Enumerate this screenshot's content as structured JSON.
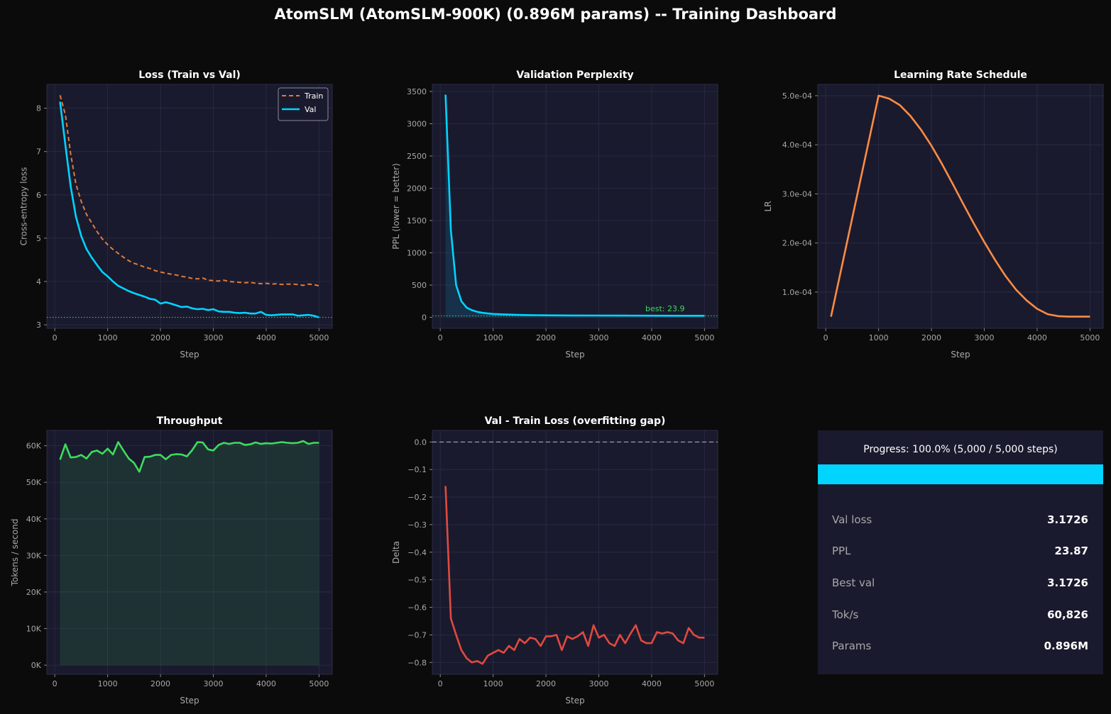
{
  "dashboard": {
    "title": "AtomSLM (AtomSLM-900K)  (0.896M params) -- Training Dashboard",
    "colors": {
      "background": "#0b0b0b",
      "panel": "#1a1a2e",
      "train": "#e07b39",
      "val": "#00d4ff",
      "lr": "#ff8c42",
      "throughput": "#3ddc5c",
      "gap": "#e04a3f",
      "best_line": "#3ddc5c"
    }
  },
  "progress": {
    "text": "Progress: 100.0%  (5,000 / 5,000 steps)",
    "fraction": 1.0,
    "stats": [
      {
        "label": "Val loss",
        "value": "3.1726"
      },
      {
        "label": "PPL",
        "value": "23.87"
      },
      {
        "label": "Best val",
        "value": "3.1726"
      },
      {
        "label": "Tok/s",
        "value": "60,826"
      },
      {
        "label": "Params",
        "value": "0.896M"
      }
    ]
  },
  "chart_data": [
    {
      "id": "loss",
      "type": "line",
      "title": "Loss (Train vs Val)",
      "xlabel": "Step",
      "ylabel": "Cross-entropy loss",
      "xlim": [
        -150,
        5250
      ],
      "ylim": [
        2.92,
        8.55
      ],
      "xticks": [
        0,
        1000,
        2000,
        3000,
        4000,
        5000
      ],
      "xtick_labels": [
        "0",
        "1000",
        "2000",
        "3000",
        "4000",
        "5000"
      ],
      "yticks": [
        3,
        4,
        5,
        6,
        7,
        8
      ],
      "ytick_labels": [
        "3",
        "4",
        "5",
        "6",
        "7",
        "8"
      ],
      "grid": true,
      "legend": "top-right",
      "hline": {
        "y": 3.1726,
        "color": "#3ddc5c",
        "style": "dotted"
      },
      "series": [
        {
          "name": "Train",
          "color": "#e07b39",
          "style": "dashed",
          "x": [
            100,
            200,
            300,
            400,
            500,
            600,
            700,
            800,
            900,
            1000,
            1100,
            1200,
            1300,
            1400,
            1500,
            1600,
            1700,
            1800,
            1900,
            2000,
            2100,
            2200,
            2300,
            2400,
            2500,
            2600,
            2700,
            2800,
            2900,
            3000,
            3100,
            3200,
            3300,
            3400,
            3500,
            3600,
            3700,
            3800,
            3900,
            4000,
            4100,
            4200,
            4300,
            4400,
            4500,
            4600,
            4700,
            4800,
            4900,
            5000
          ],
          "y": [
            8.3,
            7.85,
            6.95,
            6.25,
            5.85,
            5.55,
            5.35,
            5.15,
            4.98,
            4.85,
            4.74,
            4.65,
            4.56,
            4.48,
            4.42,
            4.38,
            4.33,
            4.3,
            4.25,
            4.22,
            4.19,
            4.17,
            4.15,
            4.12,
            4.1,
            4.07,
            4.06,
            4.08,
            4.03,
            4.02,
            4.01,
            4.03,
            4.0,
            3.99,
            3.98,
            3.97,
            3.98,
            3.96,
            3.95,
            3.96,
            3.94,
            3.95,
            3.93,
            3.94,
            3.94,
            3.93,
            3.91,
            3.94,
            3.93,
            3.9
          ]
        },
        {
          "name": "Val",
          "color": "#00d4ff",
          "style": "solid",
          "x": [
            100,
            200,
            300,
            400,
            500,
            600,
            700,
            800,
            900,
            1000,
            1100,
            1200,
            1300,
            1400,
            1500,
            1600,
            1700,
            1800,
            1900,
            2000,
            2100,
            2200,
            2300,
            2400,
            2500,
            2600,
            2700,
            2800,
            2900,
            3000,
            3100,
            3200,
            3300,
            3400,
            3500,
            3600,
            3700,
            3800,
            3900,
            4000,
            4100,
            4200,
            4300,
            4400,
            4500,
            4600,
            4700,
            4800,
            4900,
            5000
          ],
          "y": [
            8.15,
            7.15,
            6.2,
            5.5,
            5.05,
            4.75,
            4.55,
            4.38,
            4.22,
            4.12,
            4.0,
            3.9,
            3.84,
            3.78,
            3.73,
            3.69,
            3.65,
            3.6,
            3.58,
            3.49,
            3.52,
            3.49,
            3.45,
            3.41,
            3.42,
            3.38,
            3.36,
            3.37,
            3.34,
            3.36,
            3.31,
            3.3,
            3.3,
            3.28,
            3.27,
            3.28,
            3.26,
            3.26,
            3.3,
            3.23,
            3.22,
            3.23,
            3.24,
            3.24,
            3.24,
            3.21,
            3.22,
            3.23,
            3.21,
            3.17
          ]
        }
      ]
    },
    {
      "id": "ppl",
      "type": "area",
      "title": "Validation Perplexity",
      "xlabel": "Step",
      "ylabel": "PPL (lower = better)",
      "xlim": [
        -150,
        5250
      ],
      "ylim": [
        -170,
        3610
      ],
      "xticks": [
        0,
        1000,
        2000,
        3000,
        4000,
        5000
      ],
      "xtick_labels": [
        "0",
        "1000",
        "2000",
        "3000",
        "4000",
        "5000"
      ],
      "yticks": [
        0,
        500,
        1000,
        1500,
        2000,
        2500,
        3000,
        3500
      ],
      "ytick_labels": [
        "0",
        "500",
        "1000",
        "1500",
        "2000",
        "2500",
        "3000",
        "3500"
      ],
      "grid": true,
      "hline": {
        "y": 23.9,
        "color": "#3ddc5c",
        "style": "dotted"
      },
      "annotation": {
        "text": "best: 23.9",
        "x": 3880,
        "y": 140,
        "color": "#3ddc5c"
      },
      "series": [
        {
          "name": "",
          "color": "#00d4ff",
          "style": "solid",
          "fill": true,
          "x": [
            100,
            200,
            300,
            400,
            500,
            600,
            700,
            800,
            900,
            1000,
            1200,
            1400,
            1600,
            1800,
            2000,
            2500,
            3000,
            3500,
            4000,
            4500,
            5000
          ],
          "y": [
            3450,
            1350,
            500,
            250,
            150,
            110,
            85,
            70,
            60,
            52,
            45,
            40,
            36,
            33,
            31,
            29,
            28,
            27,
            26,
            25,
            24
          ]
        }
      ]
    },
    {
      "id": "lr",
      "type": "line",
      "title": "Learning Rate Schedule",
      "xlabel": "Step",
      "ylabel": "LR",
      "xlim": [
        -150,
        5250
      ],
      "ylim": [
        2.63e-05,
        0.000523
      ],
      "xticks": [
        0,
        1000,
        2000,
        3000,
        4000,
        5000
      ],
      "xtick_labels": [
        "0",
        "1000",
        "2000",
        "3000",
        "4000",
        "5000"
      ],
      "yticks": [
        0.0001,
        0.0002,
        0.0003,
        0.0004,
        0.0005
      ],
      "ytick_labels": [
        "1.0e-04",
        "2.0e-04",
        "3.0e-04",
        "4.0e-04",
        "5.0e-04"
      ],
      "grid": true,
      "series": [
        {
          "name": "",
          "color": "#ff8c42",
          "style": "solid",
          "x": [
            100,
            1000,
            1200,
            1400,
            1600,
            1800,
            2000,
            2200,
            2400,
            2600,
            2800,
            3000,
            3200,
            3400,
            3600,
            3800,
            4000,
            4200,
            4400,
            4600,
            4800,
            5000
          ],
          "y": [
            5e-05,
            0.0005,
            0.000494,
            0.000481,
            0.000459,
            0.000431,
            0.000398,
            0.000361,
            0.000321,
            0.00028,
            0.00024,
            0.000202,
            0.000166,
            0.000133,
            0.000105,
            8.3e-05,
            6.6e-05,
            5.5e-05,
            5.1e-05,
            5e-05,
            5e-05,
            5e-05
          ]
        }
      ]
    },
    {
      "id": "throughput",
      "type": "area",
      "title": "Throughput",
      "xlabel": "Step",
      "ylabel": "Tokens / second",
      "xlim": [
        -150,
        5250
      ],
      "ylim": [
        -2500,
        64200
      ],
      "xticks": [
        0,
        1000,
        2000,
        3000,
        4000,
        5000
      ],
      "xtick_labels": [
        "0",
        "1000",
        "2000",
        "3000",
        "4000",
        "5000"
      ],
      "yticks": [
        0,
        10000,
        20000,
        30000,
        40000,
        50000,
        60000
      ],
      "ytick_labels": [
        "0K",
        "10K",
        "20K",
        "30K",
        "40K",
        "50K",
        "60K"
      ],
      "grid": true,
      "series": [
        {
          "name": "",
          "color": "#3ddc5c",
          "style": "solid",
          "fill": true,
          "x": [
            100,
            200,
            300,
            400,
            500,
            600,
            700,
            800,
            900,
            1000,
            1100,
            1200,
            1300,
            1400,
            1500,
            1600,
            1700,
            1800,
            1900,
            2000,
            2100,
            2200,
            2300,
            2400,
            2500,
            2600,
            2700,
            2800,
            2900,
            3000,
            3100,
            3200,
            3300,
            3400,
            3500,
            3600,
            3700,
            3800,
            3900,
            4000,
            4100,
            4200,
            4300,
            4400,
            4500,
            4600,
            4700,
            4800,
            4900,
            5000
          ],
          "y": [
            56200,
            60400,
            56800,
            56900,
            57500,
            56500,
            58300,
            58700,
            57800,
            59200,
            57600,
            61000,
            58700,
            56500,
            55300,
            52900,
            56900,
            57000,
            57500,
            57500,
            56300,
            57500,
            57700,
            57600,
            57100,
            58800,
            61000,
            60900,
            59000,
            58700,
            60200,
            60800,
            60500,
            60800,
            60800,
            60200,
            60400,
            60900,
            60500,
            60700,
            60600,
            60800,
            61000,
            60800,
            60700,
            60800,
            61300,
            60500,
            60800,
            60800
          ]
        }
      ]
    },
    {
      "id": "gap",
      "type": "line",
      "title": "Val - Train Loss (overfitting gap)",
      "xlabel": "Step",
      "ylabel": "Delta",
      "xlim": [
        -150,
        5250
      ],
      "ylim": [
        -0.843,
        0.042
      ],
      "xticks": [
        0,
        1000,
        2000,
        3000,
        4000,
        5000
      ],
      "xtick_labels": [
        "0",
        "1000",
        "2000",
        "3000",
        "4000",
        "5000"
      ],
      "yticks": [
        0,
        -0.1,
        -0.2,
        -0.3,
        -0.4,
        -0.5,
        -0.6,
        -0.7,
        -0.8
      ],
      "ytick_labels": [
        "0.0",
        "−0.1",
        "−0.2",
        "−0.3",
        "−0.4",
        "−0.5",
        "−0.6",
        "−0.7",
        "−0.8"
      ],
      "grid": true,
      "hline": {
        "y": 0,
        "color": "#bbbbbb",
        "style": "dashed"
      },
      "series": [
        {
          "name": "",
          "color": "#e04a3f",
          "style": "solid",
          "x": [
            100,
            200,
            300,
            400,
            500,
            600,
            700,
            800,
            900,
            1000,
            1100,
            1200,
            1300,
            1400,
            1500,
            1600,
            1700,
            1800,
            1900,
            2000,
            2100,
            2200,
            2300,
            2400,
            2500,
            2600,
            2700,
            2800,
            2900,
            3000,
            3100,
            3200,
            3300,
            3400,
            3500,
            3600,
            3700,
            3800,
            3900,
            4000,
            4100,
            4200,
            4300,
            4400,
            4500,
            4600,
            4700,
            4800,
            4900,
            5000
          ],
          "y": [
            -0.16,
            -0.64,
            -0.7,
            -0.755,
            -0.785,
            -0.8,
            -0.795,
            -0.805,
            -0.775,
            -0.765,
            -0.755,
            -0.765,
            -0.74,
            -0.755,
            -0.715,
            -0.73,
            -0.71,
            -0.715,
            -0.74,
            -0.705,
            -0.705,
            -0.7,
            -0.755,
            -0.705,
            -0.715,
            -0.705,
            -0.69,
            -0.74,
            -0.665,
            -0.71,
            -0.7,
            -0.73,
            -0.74,
            -0.7,
            -0.73,
            -0.695,
            -0.665,
            -0.72,
            -0.73,
            -0.73,
            -0.69,
            -0.695,
            -0.69,
            -0.695,
            -0.72,
            -0.73,
            -0.675,
            -0.7,
            -0.71,
            -0.71
          ]
        }
      ]
    }
  ]
}
